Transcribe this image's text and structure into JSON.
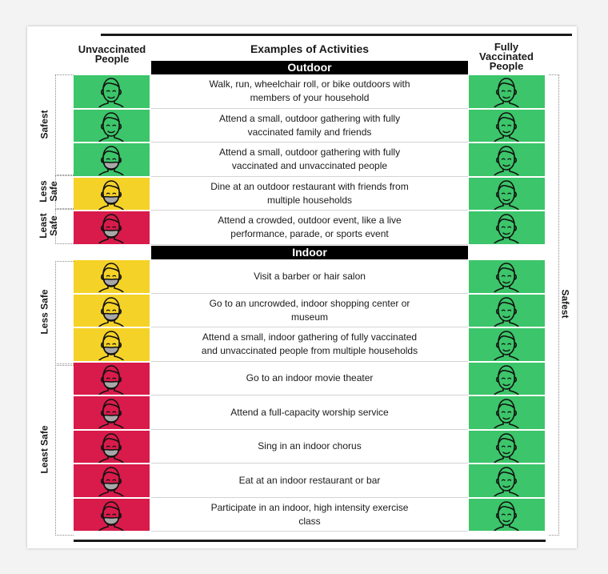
{
  "headers": {
    "unvaccinated": "Unvaccinated People",
    "activities": "Examples of Activities",
    "vaccinated": "Fully Vaccinated People"
  },
  "colors": {
    "safest": "#3cc56a",
    "less_safe": "#f5d227",
    "least_safe": "#d81b4a",
    "mask": "#a8a8a8"
  },
  "sections": {
    "outdoor": "Outdoor",
    "indoor": "Indoor"
  },
  "safety_labels": {
    "safest": "Safest",
    "less_safe_outdoor": "Less Safe",
    "least_safe_outdoor": "Least Safe",
    "less_safe_indoor": "Less Safe",
    "least_safe_indoor": "Least Safe",
    "vaccinated_safest": "Safest"
  },
  "outdoor_activities": [
    {
      "text": "Walk, run, wheelchair roll, or bike outdoors with members of your household",
      "unvax_level": "safest",
      "unvax_mask": false
    },
    {
      "text": "Attend a small, outdoor gathering with fully vaccinated family and friends",
      "unvax_level": "safest",
      "unvax_mask": false
    },
    {
      "text": "Attend a small, outdoor gathering with fully vaccinated and unvaccinated people",
      "unvax_level": "safest",
      "unvax_mask": true
    },
    {
      "text": "Dine at an outdoor restaurant with friends from multiple households",
      "unvax_level": "less_safe",
      "unvax_mask": true
    },
    {
      "text": "Attend a crowded, outdoor event, like a live performance, parade, or sports event",
      "unvax_level": "least_safe",
      "unvax_mask": true
    }
  ],
  "indoor_activities": [
    {
      "text": "Visit a barber or hair salon",
      "unvax_level": "less_safe",
      "unvax_mask": true
    },
    {
      "text": "Go to an uncrowded, indoor shopping center or museum",
      "unvax_level": "less_safe",
      "unvax_mask": true
    },
    {
      "text": "Attend a small, indoor gathering of fully vaccinated and unvaccinated people from multiple households",
      "unvax_level": "less_safe",
      "unvax_mask": true
    },
    {
      "text": "Go to an indoor movie theater",
      "unvax_level": "least_safe",
      "unvax_mask": true
    },
    {
      "text": "Attend a full-capacity worship service",
      "unvax_level": "least_safe",
      "unvax_mask": true
    },
    {
      "text": "Sing in an indoor chorus",
      "unvax_level": "least_safe",
      "unvax_mask": true
    },
    {
      "text": "Eat at an indoor restaurant or bar",
      "unvax_level": "least_safe",
      "unvax_mask": true
    },
    {
      "text": "Participate in an indoor, high intensity exercise class",
      "unvax_level": "least_safe",
      "unvax_mask": true
    }
  ]
}
